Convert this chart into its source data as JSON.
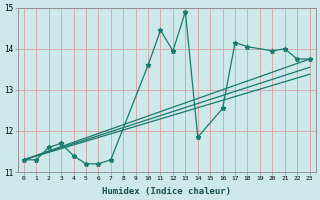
{
  "xlabel": "Humidex (Indice chaleur)",
  "bg_color": "#cce8e8",
  "grid_color": "#d9a0a0",
  "line_color": "#1a7a6e",
  "xlim": [
    -0.5,
    23.5
  ],
  "ylim": [
    11,
    15
  ],
  "xticks": [
    0,
    1,
    2,
    3,
    4,
    5,
    6,
    7,
    8,
    9,
    10,
    11,
    12,
    13,
    14,
    15,
    16,
    17,
    18,
    19,
    20,
    21,
    22,
    23
  ],
  "yticks": [
    11,
    12,
    13,
    14,
    15
  ],
  "series1_x": [
    0,
    1,
    2,
    3,
    4,
    5,
    6,
    7,
    10,
    11,
    12,
    13,
    14,
    16,
    17,
    18,
    20,
    21,
    22,
    23
  ],
  "series1_y": [
    11.3,
    11.3,
    11.6,
    11.7,
    11.4,
    11.2,
    11.2,
    11.3,
    13.6,
    14.45,
    13.95,
    14.9,
    11.85,
    12.55,
    14.15,
    14.05,
    13.95,
    14.0,
    13.75,
    13.75
  ],
  "series2_x": [
    0,
    23
  ],
  "series2_y": [
    11.3,
    13.75
  ],
  "series3_x": [
    0,
    23
  ],
  "series3_y": [
    11.3,
    13.55
  ],
  "series4_x": [
    0,
    23
  ],
  "series4_y": [
    11.3,
    13.38
  ]
}
